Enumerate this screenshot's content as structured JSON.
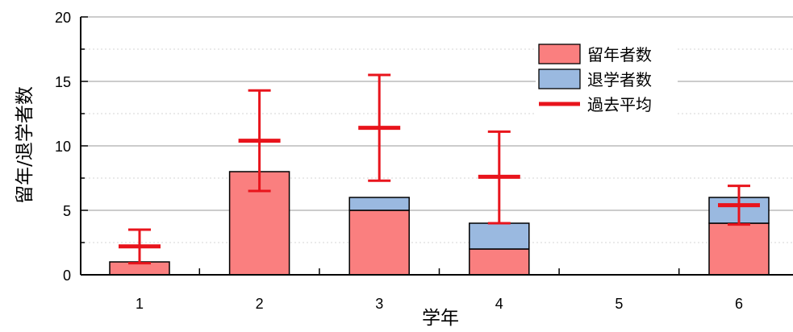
{
  "chart_data": {
    "type": "bar",
    "stacked": true,
    "categories": [
      "1",
      "2",
      "3",
      "4",
      "5",
      "6"
    ],
    "series": [
      {
        "name": "留年者数",
        "color": "#fa7f7f",
        "values": [
          1,
          8,
          5,
          2,
          0,
          4
        ]
      },
      {
        "name": "退学者数",
        "color": "#9ab9e0",
        "values": [
          0,
          0,
          1,
          2,
          0,
          2
        ]
      }
    ],
    "average": {
      "name": "過去平均",
      "color": "#e8141c",
      "values": [
        2.2,
        10.4,
        11.4,
        7.6,
        null,
        5.4
      ],
      "err_low": [
        0.9,
        6.5,
        7.3,
        4.0,
        null,
        3.9
      ],
      "err_high": [
        3.5,
        14.3,
        15.5,
        11.1,
        null,
        6.9
      ]
    },
    "xlabel": "学年",
    "ylabel": "留年/退学者数",
    "ylim": [
      0,
      20
    ],
    "yticks": [
      0,
      5,
      10,
      15,
      20
    ],
    "grid": true,
    "legend_position": "top-right"
  }
}
